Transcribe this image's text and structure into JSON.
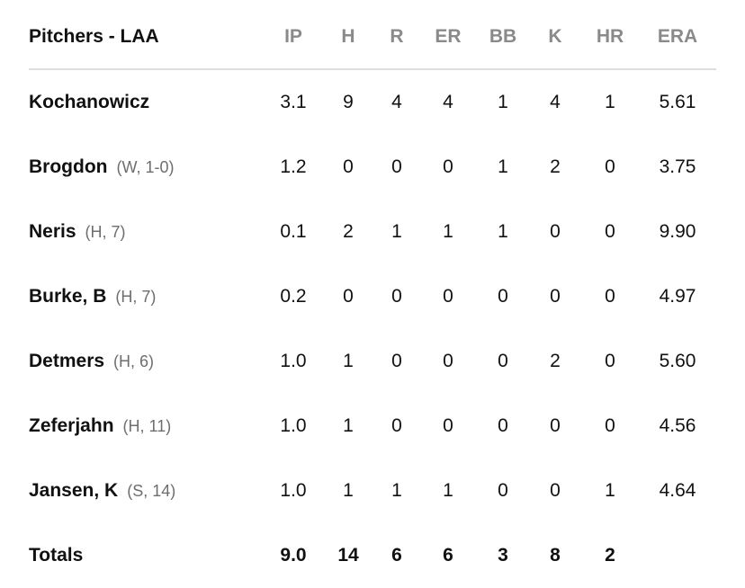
{
  "header": {
    "title": "Pitchers - LAA",
    "columns": [
      "IP",
      "H",
      "R",
      "ER",
      "BB",
      "K",
      "HR",
      "ERA"
    ]
  },
  "pitchers": [
    {
      "name": "Kochanowicz",
      "note": "",
      "ip": "3.1",
      "h": "9",
      "r": "4",
      "er": "4",
      "bb": "1",
      "k": "4",
      "hr": "1",
      "era": "5.61"
    },
    {
      "name": "Brogdon",
      "note": "(W, 1-0)",
      "ip": "1.2",
      "h": "0",
      "r": "0",
      "er": "0",
      "bb": "1",
      "k": "2",
      "hr": "0",
      "era": "3.75"
    },
    {
      "name": "Neris",
      "note": "(H, 7)",
      "ip": "0.1",
      "h": "2",
      "r": "1",
      "er": "1",
      "bb": "1",
      "k": "0",
      "hr": "0",
      "era": "9.90"
    },
    {
      "name": "Burke, B",
      "note": "(H, 7)",
      "ip": "0.2",
      "h": "0",
      "r": "0",
      "er": "0",
      "bb": "0",
      "k": "0",
      "hr": "0",
      "era": "4.97"
    },
    {
      "name": "Detmers",
      "note": "(H, 6)",
      "ip": "1.0",
      "h": "1",
      "r": "0",
      "er": "0",
      "bb": "0",
      "k": "2",
      "hr": "0",
      "era": "5.60"
    },
    {
      "name": "Zeferjahn",
      "note": "(H, 11)",
      "ip": "1.0",
      "h": "1",
      "r": "0",
      "er": "0",
      "bb": "0",
      "k": "0",
      "hr": "0",
      "era": "4.56"
    },
    {
      "name": "Jansen, K",
      "note": "(S, 14)",
      "ip": "1.0",
      "h": "1",
      "r": "1",
      "er": "1",
      "bb": "0",
      "k": "0",
      "hr": "1",
      "era": "4.64"
    }
  ],
  "totals": {
    "label": "Totals",
    "ip": "9.0",
    "h": "14",
    "r": "6",
    "er": "6",
    "bb": "3",
    "k": "8",
    "hr": "2",
    "era": ""
  }
}
